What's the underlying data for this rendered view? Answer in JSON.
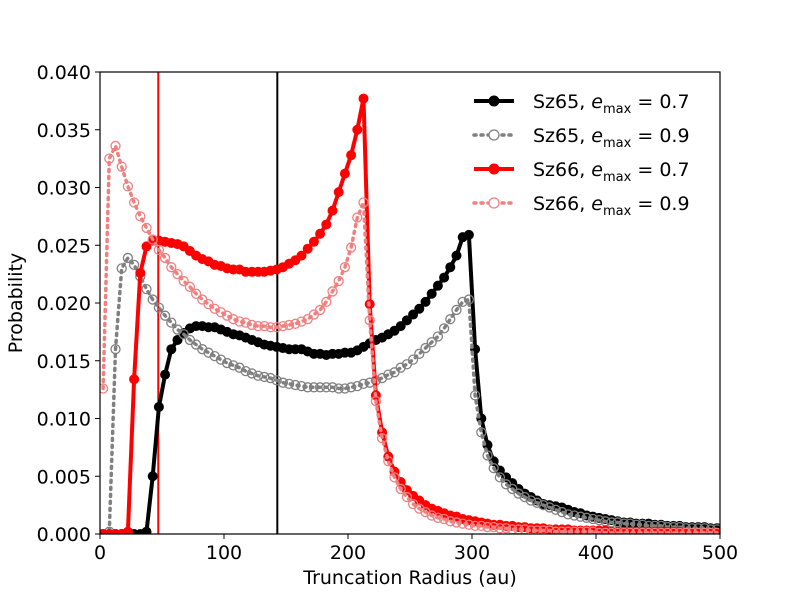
{
  "chart_data": {
    "type": "line",
    "title": "",
    "xlabel": "Truncation Radius (au)",
    "ylabel": "Probability",
    "xlim": [
      0,
      500
    ],
    "ylim": [
      0,
      0.04
    ],
    "xticks": [
      0,
      100,
      200,
      300,
      400,
      500
    ],
    "yticks": [
      0.0,
      0.005,
      0.01,
      0.015,
      0.02,
      0.025,
      0.03,
      0.035,
      0.04
    ],
    "ytick_labels": [
      "0.000",
      "0.005",
      "0.010",
      "0.015",
      "0.020",
      "0.025",
      "0.030",
      "0.035",
      "0.040"
    ],
    "xtick_labels": [
      "0",
      "100",
      "200",
      "300",
      "400",
      "500"
    ],
    "grid": false,
    "legend_position": "top-right",
    "vlines": [
      {
        "x": 47,
        "color": "#ff0000"
      },
      {
        "x": 143,
        "color": "#000000"
      }
    ],
    "series": [
      {
        "name": "Sz65, e_max = 0.7",
        "label_prefix": "Sz65, ",
        "label_value": "0.7",
        "color": "#000000",
        "style": "solid",
        "marker": "filled",
        "x": [
          2.5,
          7.5,
          12.5,
          17.5,
          22.5,
          27.5,
          32.5,
          37.5,
          42.5,
          47.5,
          52.5,
          57.5,
          62.5,
          67.5,
          72.5,
          77.5,
          82.5,
          87.5,
          92.5,
          97.5,
          102.5,
          107.5,
          112.5,
          117.5,
          122.5,
          127.5,
          132.5,
          137.5,
          142.5,
          147.5,
          152.5,
          157.5,
          162.5,
          167.5,
          172.5,
          177.5,
          182.5,
          187.5,
          192.5,
          197.5,
          202.5,
          207.5,
          212.5,
          217.5,
          222.5,
          227.5,
          232.5,
          237.5,
          242.5,
          247.5,
          252.5,
          257.5,
          262.5,
          267.5,
          272.5,
          277.5,
          282.5,
          287.5,
          292.5,
          297.5,
          302.5,
          307.5,
          312.5,
          317.5,
          322.5,
          327.5,
          332.5,
          337.5,
          342.5,
          347.5,
          352.5,
          357.5,
          362.5,
          367.5,
          372.5,
          377.5,
          382.5,
          387.5,
          392.5,
          397.5,
          402.5,
          407.5,
          412.5,
          417.5,
          422.5,
          427.5,
          432.5,
          437.5,
          442.5,
          447.5,
          452.5,
          457.5,
          462.5,
          467.5,
          472.5,
          477.5,
          482.5,
          487.5,
          492.5,
          497.5
        ],
        "values": [
          0,
          0,
          0,
          0,
          0,
          0,
          0,
          0.0002,
          0.005,
          0.011,
          0.0138,
          0.016,
          0.0168,
          0.0174,
          0.0178,
          0.018,
          0.018,
          0.0179,
          0.0179,
          0.0177,
          0.0175,
          0.0173,
          0.0172,
          0.017,
          0.0168,
          0.0166,
          0.0164,
          0.0163,
          0.0162,
          0.0161,
          0.016,
          0.016,
          0.016,
          0.0158,
          0.0156,
          0.0156,
          0.0155,
          0.0156,
          0.0156,
          0.0157,
          0.0157,
          0.0159,
          0.0162,
          0.0165,
          0.0168,
          0.017,
          0.0173,
          0.0176,
          0.018,
          0.0185,
          0.019,
          0.0195,
          0.0201,
          0.0208,
          0.0215,
          0.0222,
          0.0231,
          0.0241,
          0.0257,
          0.0259,
          0.016,
          0.01,
          0.0077,
          0.0063,
          0.0055,
          0.0049,
          0.0044,
          0.0039,
          0.0035,
          0.0032,
          0.0029,
          0.0026,
          0.0025,
          0.0024,
          0.0023,
          0.0021,
          0.0019,
          0.0018,
          0.0016,
          0.0015,
          0.0014,
          0.0013,
          0.0012,
          0.0011,
          0.001,
          0.001,
          0.0009,
          0.0009,
          0.0009,
          0.0008,
          0.0008,
          0.0007,
          0.0007,
          0.0007,
          0.0006,
          0.0006,
          0.0006,
          0.0006,
          0.0005,
          0.0005
        ]
      },
      {
        "name": "Sz65, e_max = 0.9",
        "label_prefix": "Sz65, ",
        "label_value": "0.9",
        "color": "#808080",
        "style": "dotted",
        "marker": "open",
        "x": [
          2.5,
          7.5,
          12.5,
          17.5,
          22.5,
          27.5,
          32.5,
          37.5,
          42.5,
          47.5,
          52.5,
          57.5,
          62.5,
          67.5,
          72.5,
          77.5,
          82.5,
          87.5,
          92.5,
          97.5,
          102.5,
          107.5,
          112.5,
          117.5,
          122.5,
          127.5,
          132.5,
          137.5,
          142.5,
          147.5,
          152.5,
          157.5,
          162.5,
          167.5,
          172.5,
          177.5,
          182.5,
          187.5,
          192.5,
          197.5,
          202.5,
          207.5,
          212.5,
          217.5,
          222.5,
          227.5,
          232.5,
          237.5,
          242.5,
          247.5,
          252.5,
          257.5,
          262.5,
          267.5,
          272.5,
          277.5,
          282.5,
          287.5,
          292.5,
          297.5,
          302.5,
          307.5,
          312.5,
          317.5,
          322.5,
          327.5,
          332.5,
          337.5,
          342.5,
          347.5,
          352.5,
          357.5,
          362.5,
          367.5,
          372.5,
          377.5,
          382.5,
          387.5,
          392.5,
          397.5,
          402.5,
          407.5,
          412.5,
          417.5,
          422.5,
          427.5,
          432.5,
          437.5,
          442.5,
          447.5,
          452.5,
          457.5,
          462.5,
          467.5,
          472.5,
          477.5,
          482.5,
          487.5,
          492.5,
          497.5
        ],
        "values": [
          0,
          0.0002,
          0.016,
          0.023,
          0.0239,
          0.0233,
          0.0223,
          0.0212,
          0.0203,
          0.0196,
          0.0189,
          0.0183,
          0.0177,
          0.0173,
          0.0168,
          0.0164,
          0.016,
          0.0157,
          0.0154,
          0.0151,
          0.0148,
          0.0146,
          0.0144,
          0.0141,
          0.0139,
          0.0137,
          0.0136,
          0.0135,
          0.0133,
          0.0131,
          0.013,
          0.0129,
          0.0128,
          0.0127,
          0.0127,
          0.0127,
          0.0127,
          0.0127,
          0.0126,
          0.0126,
          0.0127,
          0.0128,
          0.013,
          0.0131,
          0.0133,
          0.0135,
          0.0138,
          0.014,
          0.0144,
          0.0147,
          0.0151,
          0.0156,
          0.0161,
          0.0166,
          0.0171,
          0.0178,
          0.0186,
          0.0194,
          0.0201,
          0.0203,
          0.012,
          0.0088,
          0.0068,
          0.0057,
          0.0049,
          0.0043,
          0.0039,
          0.0035,
          0.0032,
          0.0029,
          0.0027,
          0.0025,
          0.0023,
          0.0021,
          0.0019,
          0.0017,
          0.0016,
          0.0015,
          0.0014,
          0.0013,
          0.0012,
          0.0011,
          0.001,
          0.001,
          0.0009,
          0.0009,
          0.0008,
          0.0008,
          0.0007,
          0.0007,
          0.0007,
          0.0006,
          0.0006,
          0.0006,
          0.0005,
          0.0005,
          0.0005,
          0.0005,
          0.0004,
          0.0004
        ]
      },
      {
        "name": "Sz66, e_max = 0.7",
        "label_prefix": "Sz66, ",
        "label_value": "0.7",
        "color": "#ff0000",
        "style": "solid",
        "marker": "filled",
        "x": [
          2.5,
          7.5,
          12.5,
          17.5,
          22.5,
          27.5,
          32.5,
          37.5,
          42.5,
          47.5,
          52.5,
          57.5,
          62.5,
          67.5,
          72.5,
          77.5,
          82.5,
          87.5,
          92.5,
          97.5,
          102.5,
          107.5,
          112.5,
          117.5,
          122.5,
          127.5,
          132.5,
          137.5,
          142.5,
          147.5,
          152.5,
          157.5,
          162.5,
          167.5,
          172.5,
          177.5,
          182.5,
          187.5,
          192.5,
          197.5,
          202.5,
          207.5,
          212.5,
          217.5,
          222.5,
          227.5,
          232.5,
          237.5,
          242.5,
          247.5,
          252.5,
          257.5,
          262.5,
          267.5,
          272.5,
          277.5,
          282.5,
          287.5,
          292.5,
          297.5,
          302.5,
          307.5,
          312.5,
          317.5,
          322.5,
          327.5,
          332.5,
          337.5,
          342.5,
          347.5,
          352.5,
          357.5,
          362.5,
          367.5,
          372.5,
          377.5,
          382.5,
          387.5,
          392.5,
          397.5,
          402.5,
          407.5,
          412.5,
          417.5,
          422.5,
          427.5,
          432.5,
          437.5,
          442.5,
          447.5,
          452.5,
          457.5,
          462.5,
          467.5,
          472.5,
          477.5,
          482.5,
          487.5,
          492.5,
          497.5
        ],
        "values": [
          0,
          0,
          0,
          0,
          0.0002,
          0.0134,
          0.0226,
          0.0249,
          0.0254,
          0.0254,
          0.0253,
          0.0252,
          0.0251,
          0.0249,
          0.0245,
          0.0241,
          0.0238,
          0.0236,
          0.0233,
          0.0232,
          0.023,
          0.0229,
          0.0229,
          0.0227,
          0.0227,
          0.0227,
          0.0227,
          0.0228,
          0.0229,
          0.0231,
          0.0234,
          0.0237,
          0.0241,
          0.0247,
          0.0253,
          0.026,
          0.0268,
          0.028,
          0.0296,
          0.0312,
          0.0328,
          0.035,
          0.0377,
          0.0199,
          0.012,
          0.0088,
          0.0067,
          0.0054,
          0.0045,
          0.0038,
          0.0033,
          0.0029,
          0.0025,
          0.0022,
          0.002,
          0.0018,
          0.0016,
          0.0015,
          0.0013,
          0.0012,
          0.0011,
          0.001,
          0.0009,
          0.0008,
          0.0008,
          0.0007,
          0.0007,
          0.0006,
          0.0006,
          0.0005,
          0.0005,
          0.0005,
          0.0004,
          0.0004,
          0.0004,
          0.0004,
          0.0003,
          0.0003,
          0.0003,
          0.0003,
          0.0003,
          0.0003,
          0.0002,
          0.0002,
          0.0002,
          0.0002,
          0.0002,
          0.0002,
          0.0002,
          0.0002,
          0.0002,
          0.0002,
          0.0002,
          0.0002,
          0.0001,
          0.0001,
          0.0001,
          0.0001,
          0.0001,
          0.0001
        ]
      },
      {
        "name": "Sz66, e_max = 0.9",
        "label_prefix": "Sz66, ",
        "label_value": "0.9",
        "color": "#f08080",
        "style": "dotted",
        "marker": "open",
        "x": [
          2.5,
          7.5,
          12.5,
          17.5,
          22.5,
          27.5,
          32.5,
          37.5,
          42.5,
          47.5,
          52.5,
          57.5,
          62.5,
          67.5,
          72.5,
          77.5,
          82.5,
          87.5,
          92.5,
          97.5,
          102.5,
          107.5,
          112.5,
          117.5,
          122.5,
          127.5,
          132.5,
          137.5,
          142.5,
          147.5,
          152.5,
          157.5,
          162.5,
          167.5,
          172.5,
          177.5,
          182.5,
          187.5,
          192.5,
          197.5,
          202.5,
          207.5,
          212.5,
          217.5,
          222.5,
          227.5,
          232.5,
          237.5,
          242.5,
          247.5,
          252.5,
          257.5,
          262.5,
          267.5,
          272.5,
          277.5,
          282.5,
          287.5,
          292.5,
          297.5,
          302.5,
          307.5,
          312.5,
          317.5,
          322.5,
          327.5,
          332.5,
          337.5,
          342.5,
          347.5,
          352.5,
          357.5,
          362.5,
          367.5,
          372.5,
          377.5,
          382.5,
          387.5,
          392.5,
          397.5,
          402.5,
          407.5,
          412.5,
          417.5,
          422.5,
          427.5,
          432.5,
          437.5,
          442.5,
          447.5,
          452.5,
          457.5,
          462.5,
          467.5,
          472.5,
          477.5,
          482.5,
          487.5,
          492.5,
          497.5
        ],
        "values": [
          0.0126,
          0.0325,
          0.0336,
          0.0318,
          0.0301,
          0.0287,
          0.0275,
          0.0265,
          0.0255,
          0.0246,
          0.0239,
          0.0231,
          0.0225,
          0.0219,
          0.0214,
          0.0208,
          0.0203,
          0.0199,
          0.0195,
          0.0192,
          0.0189,
          0.0186,
          0.0184,
          0.0183,
          0.0181,
          0.018,
          0.018,
          0.0179,
          0.0179,
          0.018,
          0.0181,
          0.0182,
          0.0184,
          0.0186,
          0.019,
          0.0194,
          0.0201,
          0.021,
          0.0219,
          0.0231,
          0.0248,
          0.0274,
          0.0287,
          0.0185,
          0.0115,
          0.0083,
          0.0063,
          0.0049,
          0.0039,
          0.0032,
          0.0026,
          0.0022,
          0.0019,
          0.0016,
          0.0014,
          0.0013,
          0.0011,
          0.001,
          0.0009,
          0.0008,
          0.0007,
          0.0007,
          0.0006,
          0.0006,
          0.0005,
          0.0005,
          0.0004,
          0.0004,
          0.0004,
          0.0003,
          0.0003,
          0.0003,
          0.0003,
          0.0002,
          0.0002,
          0.0002,
          0.0002,
          0.0002,
          0.0002,
          0.0002,
          0.0001,
          0.0001,
          0.0001,
          0.0001,
          0.0001,
          0.0001,
          0.0001,
          0.0001,
          0.0001,
          0.0001,
          0.0001,
          0.0001,
          0.0001,
          0.0001,
          0.0001,
          0.0001,
          0.0001,
          0.0001,
          0.0001,
          0.0001
        ]
      }
    ]
  }
}
